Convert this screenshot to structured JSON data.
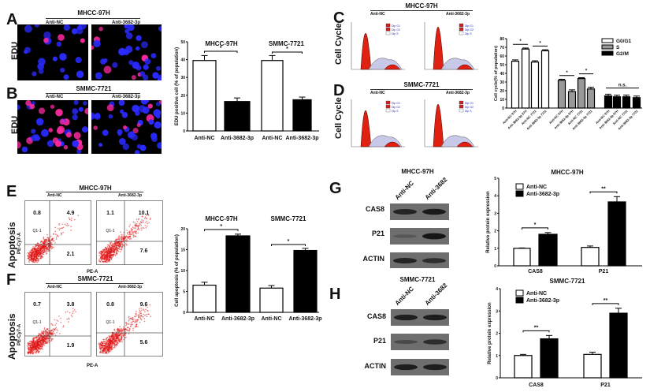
{
  "panels": {
    "A": {
      "letter": "A",
      "cell_line": "MHCC-97H",
      "lanes": [
        "Anti-NC",
        "Anti-3682-3p"
      ],
      "row_label": "EDU"
    },
    "B": {
      "letter": "B",
      "cell_line": "SMMC-7721",
      "lanes": [
        "Anti-NC",
        "Anti-3682-3p"
      ],
      "row_label": "EDU"
    },
    "C": {
      "letter": "C",
      "cell_line": "MHCC-97H",
      "lanes": [
        "Anti-NC",
        "Anti-3682-3p"
      ],
      "row_label": "Cell Cycle",
      "legend": [
        "Dip G1",
        "Dip G2",
        "Dip S"
      ]
    },
    "D": {
      "letter": "D",
      "cell_line": "SMMC-7721",
      "lanes": [
        "Anti-NC",
        "Anti-3682-3p"
      ],
      "row_label": "Cell Cycle",
      "legend": [
        "Dip G1",
        "Dip G2",
        "Dip S"
      ]
    },
    "E": {
      "letter": "E",
      "cell_line": "MHCC-97H",
      "lanes": [
        "Anti-NC",
        "Anti-3682-3p"
      ],
      "row_label": "Apoptosis",
      "y_axis": "PE-Cy7-A",
      "x_axis": "PE-A",
      "gate_label": "Q1-1",
      "quadrants": [
        {
          "ul": "0.8",
          "ur": "4.9",
          "lr": "2.1"
        },
        {
          "ul": "1.1",
          "ur": "10.1",
          "lr": "7.6"
        }
      ]
    },
    "F": {
      "letter": "F",
      "cell_line": "SMMC-7721",
      "lanes": [
        "Anti-NC",
        "Anti-3682-3p"
      ],
      "row_label": "Apoptosis",
      "y_axis": "PE-Cy7-A",
      "x_axis": "PE-A",
      "gate_label": "Q1-1",
      "quadrants": [
        {
          "ul": "0.7",
          "ur": "3.8",
          "lr": "1.9"
        },
        {
          "ul": "0.8",
          "ur": "9.6",
          "lr": "5.6"
        }
      ]
    },
    "G": {
      "letter": "G",
      "cell_line": "MHCC-97H",
      "lanes": [
        "Anti-NC",
        "Anti-3682"
      ],
      "rows": [
        "CAS8",
        "P21",
        "ACTIN"
      ]
    },
    "H": {
      "letter": "H",
      "cell_line": "SMMC-7721",
      "lanes": [
        "Anti-NC",
        "Anti-3682"
      ],
      "rows": [
        "CAS8",
        "P21",
        "ACTIN"
      ]
    }
  },
  "colors": {
    "anti_nc": "#ffffff",
    "anti_3682": "#000000",
    "g0g1": "#ffffff",
    "s": "#999999",
    "g2m": "#000000",
    "edu_blue": "#2a2aff",
    "edu_pink": "#ff2aa0",
    "flow_red": "#e01010",
    "hist_red": "#e02010"
  },
  "chart_data": [
    {
      "panel": "A",
      "type": "bar",
      "ylabel": "EDU positive cell (% of population)",
      "ylim": [
        0,
        50
      ],
      "yticks": [
        "0",
        "10",
        "20",
        "30",
        "40",
        "50"
      ],
      "groups": [
        "MHCC-97H",
        "SMMC-7721"
      ],
      "categories": [
        "Anti-NC",
        "Anti-3682-3p",
        "Anti-NC",
        "Anti-3682-3p"
      ],
      "values": [
        39.5,
        16.5,
        39.5,
        17.5
      ],
      "errors": [
        2.8,
        2.0,
        2.8,
        1.5
      ],
      "significance": [
        {
          "bars": [
            0,
            1
          ],
          "label": "*"
        },
        {
          "bars": [
            2,
            3
          ],
          "label": "*"
        }
      ]
    },
    {
      "panel": "C-D",
      "type": "bar",
      "ylabel": "Cell cycle(% of population)",
      "ylim": [
        0,
        80
      ],
      "yticks": [
        "0",
        "10",
        "20",
        "30",
        "40",
        "50",
        "60",
        "70",
        "80"
      ],
      "categories": [
        "Anti-NC 97H",
        "Anti-3682-3p 97H",
        "Anti-NC 7721",
        "Anti-3682-3p 7721"
      ],
      "legend_position": "top-right",
      "series": [
        {
          "name": "G0/G1",
          "values": [
            54,
            68,
            53,
            66
          ],
          "errors": [
            1.5,
            1.2,
            1.5,
            1.2
          ]
        },
        {
          "name": "S",
          "values": [
            32,
            19,
            34,
            22
          ],
          "errors": [
            1.2,
            2.0,
            1.0,
            2.0
          ]
        },
        {
          "name": "G2/M",
          "values": [
            14,
            13,
            13,
            12
          ],
          "errors": [
            2.0,
            1.8,
            2.0,
            1.8
          ]
        }
      ],
      "significance": [
        {
          "series": 0,
          "bars": [
            0,
            1
          ],
          "label": "*"
        },
        {
          "series": 0,
          "bars": [
            2,
            3
          ],
          "label": "*"
        },
        {
          "series": 1,
          "bars": [
            0,
            1
          ],
          "label": "*"
        },
        {
          "series": 1,
          "bars": [
            2,
            3
          ],
          "label": "*"
        },
        {
          "series": 2,
          "bars": [
            0,
            3
          ],
          "label": "n.s."
        }
      ]
    },
    {
      "panel": "E-F",
      "type": "bar",
      "ylabel": "Cell apoptosis (% of population)",
      "ylim": [
        0,
        20
      ],
      "yticks": [
        "0",
        "5",
        "10",
        "15",
        "20"
      ],
      "groups": [
        "MHCC-97H",
        "SMMC-7721"
      ],
      "categories": [
        "Anti-NC",
        "Anti-3682-3p",
        "Anti-NC",
        "Anti-3682-3p"
      ],
      "values": [
        6.5,
        18.3,
        5.8,
        14.8
      ],
      "errors": [
        0.7,
        0.4,
        0.6,
        0.5
      ],
      "significance": [
        {
          "bars": [
            0,
            1
          ],
          "label": "*"
        },
        {
          "bars": [
            2,
            3
          ],
          "label": "*"
        }
      ]
    },
    {
      "panel": "G",
      "type": "bar",
      "title": "MHCC-97H",
      "ylabel": "Relative protein expression",
      "ylim": [
        0,
        5
      ],
      "yticks": [
        "0",
        "1",
        "2",
        "3",
        "4",
        "5"
      ],
      "categories": [
        "CAS8",
        "P21"
      ],
      "legend_position": "top-left",
      "series": [
        {
          "name": "Anti-NC",
          "values": [
            1.0,
            1.05
          ],
          "errors": [
            0.02,
            0.08
          ]
        },
        {
          "name": "Anti-3682-3p",
          "values": [
            1.8,
            3.65
          ],
          "errors": [
            0.1,
            0.3
          ]
        }
      ],
      "significance": [
        {
          "category": 0,
          "label": "*"
        },
        {
          "category": 1,
          "label": "**"
        }
      ]
    },
    {
      "panel": "H",
      "type": "bar",
      "title": "SMMC-7721",
      "ylabel": "Relative protein expression",
      "ylim": [
        0,
        4
      ],
      "yticks": [
        "0",
        "1",
        "2",
        "3",
        "4"
      ],
      "categories": [
        "CAS8",
        "P21"
      ],
      "legend_position": "top-left",
      "series": [
        {
          "name": "Anti-NC",
          "values": [
            1.0,
            1.05
          ],
          "errors": [
            0.05,
            0.1
          ]
        },
        {
          "name": "Anti-3682-3p",
          "values": [
            1.75,
            2.9
          ],
          "errors": [
            0.15,
            0.22
          ]
        }
      ],
      "significance": [
        {
          "category": 0,
          "label": "**"
        },
        {
          "category": 1,
          "label": "**"
        }
      ]
    }
  ]
}
